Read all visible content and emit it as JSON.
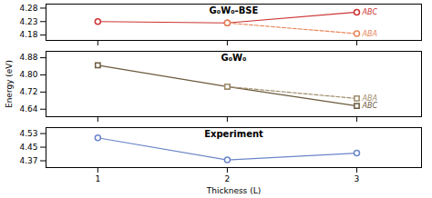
{
  "chart_data": [
    {
      "type": "line",
      "title": "G₀W₀-BSE",
      "xlim": [
        0.6,
        3.5
      ],
      "xticks": [
        1,
        2,
        3
      ],
      "ylim": [
        4.16,
        4.295
      ],
      "yticks": [
        4.18,
        4.23,
        4.28
      ],
      "tick_labels": "y",
      "series": [
        {
          "name": "ABC",
          "color": "#cc3333",
          "line_style": "solid",
          "marker": "circle",
          "x": [
            1,
            2,
            3
          ],
          "values": [
            4.23,
            4.225,
            4.265
          ]
        },
        {
          "name": "ABA",
          "color": "#e8855a",
          "line_style": "dashed",
          "marker": "circle",
          "x": [
            2,
            3
          ],
          "values": [
            4.225,
            4.185
          ]
        }
      ]
    },
    {
      "type": "line",
      "title": "G₀W₀",
      "ylabel": "Energy (eV)",
      "xlim": [
        0.6,
        3.5
      ],
      "xticks": [
        1,
        2,
        3
      ],
      "ylim": [
        4.605,
        4.91
      ],
      "yticks": [
        4.64,
        4.72,
        {
          "value": 4.8,
          "label": "4.80"
        },
        4.88
      ],
      "tick_labels": "y",
      "series": [
        {
          "name": "ABC",
          "color": "#6b5a3e",
          "line_style": "solid",
          "marker": "square",
          "x": [
            1,
            2,
            3
          ],
          "values": [
            4.845,
            4.745,
            4.655
          ]
        },
        {
          "name": "ABA",
          "color": "#9e8c6a",
          "line_style": "dashed",
          "marker": "square",
          "x": [
            2,
            3
          ],
          "values": [
            4.745,
            4.69
          ]
        }
      ]
    },
    {
      "type": "line",
      "title": "Experiment",
      "xlabel": "Thickness (L)",
      "xlim": [
        0.6,
        3.5
      ],
      "xticks": [
        1,
        2,
        3
      ],
      "ylim": [
        4.33,
        4.565
      ],
      "yticks": [
        4.37,
        4.45,
        4.53
      ],
      "series": [
        {
          "color": "#6a85c8",
          "line_style": "solid",
          "marker": "circle",
          "x": [
            1,
            2,
            3
          ],
          "values": [
            4.505,
            4.375,
            4.415
          ],
          "yerr": [
            0.008,
            0.012,
            0.012
          ]
        }
      ]
    }
  ]
}
